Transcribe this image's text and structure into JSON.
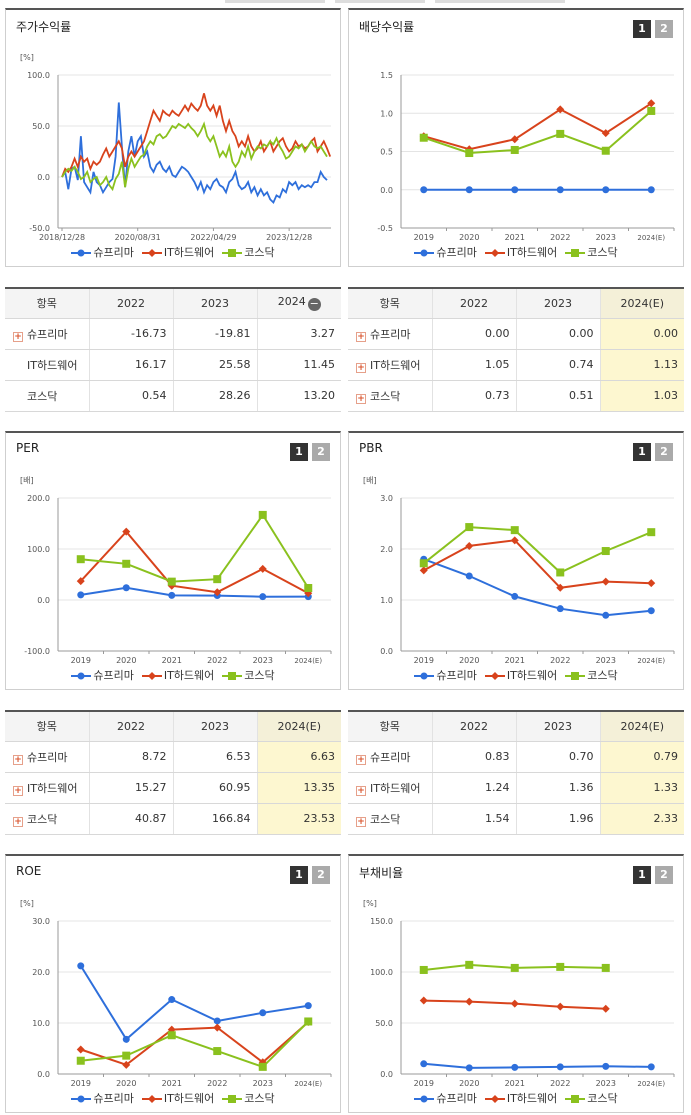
{
  "legend": [
    "슈프리마",
    "IT하드웨어",
    "코스닥"
  ],
  "colors": {
    "supr": "#2e6fdb",
    "it": "#d8431c",
    "kosdaq": "#8ac11e"
  },
  "tabs": [
    "1",
    "2"
  ],
  "stock": {
    "title": "주가수익률",
    "unit": "[%]",
    "chart_data": {
      "type": "line",
      "title": "주가수익률",
      "ylabel": "[%]",
      "ylim": [
        -50,
        100
      ],
      "yticks": [
        "100.0",
        "50.0",
        "0.0",
        "-50.0"
      ],
      "xticks": [
        "2018/12/28",
        "2020/08/31",
        "2022/04/29",
        "2023/12/28"
      ],
      "series": [
        {
          "name": "슈프리마",
          "values": [
            0,
            5,
            -12,
            8,
            10,
            -3,
            40,
            -5,
            -10,
            -15,
            5,
            -5,
            -8,
            -15,
            -10,
            -5,
            -2,
            20,
            73,
            30,
            -10,
            25,
            40,
            20,
            35,
            40,
            20,
            25,
            10,
            5,
            12,
            15,
            8,
            5,
            10,
            2,
            0,
            5,
            10,
            8,
            5,
            0,
            -5,
            -12,
            -5,
            -15,
            -8,
            -12,
            -5,
            -2,
            -8,
            -10,
            -15,
            -5,
            -2,
            5,
            -8,
            -12,
            -10,
            -5,
            -15,
            -10,
            -18,
            -12,
            -18,
            -15,
            -22,
            -25,
            -18,
            -20,
            -12,
            -15,
            -5,
            -8,
            -5,
            -12,
            -8,
            -10,
            -8,
            -10,
            -5,
            -5,
            5,
            0,
            -3
          ]
        },
        {
          "name": "IT하드웨어",
          "values": [
            0,
            8,
            5,
            10,
            18,
            10,
            20,
            15,
            18,
            8,
            15,
            12,
            15,
            22,
            28,
            20,
            25,
            30,
            35,
            28,
            10,
            20,
            25,
            20,
            25,
            30,
            35,
            45,
            55,
            65,
            60,
            55,
            65,
            62,
            60,
            65,
            62,
            60,
            65,
            70,
            65,
            72,
            68,
            65,
            70,
            82,
            70,
            65,
            70,
            60,
            70,
            55,
            45,
            55,
            45,
            40,
            30,
            35,
            30,
            40,
            30,
            25,
            28,
            35,
            25,
            30,
            35,
            25,
            30,
            35,
            38,
            30,
            25,
            28,
            35,
            30,
            32,
            28,
            30,
            35,
            38,
            25,
            30,
            35,
            28,
            20
          ]
        },
        {
          "name": "코스닥",
          "values": [
            0,
            5,
            8,
            6,
            10,
            5,
            -2,
            0,
            5,
            -5,
            -2,
            0,
            -8,
            -5,
            0,
            -8,
            -12,
            -2,
            3,
            15,
            -10,
            8,
            18,
            10,
            15,
            20,
            22,
            30,
            35,
            32,
            40,
            42,
            38,
            40,
            45,
            50,
            48,
            52,
            50,
            48,
            52,
            48,
            45,
            40,
            45,
            52,
            40,
            35,
            40,
            30,
            20,
            25,
            20,
            30,
            15,
            10,
            15,
            25,
            20,
            30,
            18,
            25,
            30,
            28,
            32,
            30,
            35,
            32,
            38,
            30,
            25,
            18,
            20,
            25,
            30,
            28,
            32,
            25,
            30,
            35,
            30,
            28,
            30,
            25,
            20
          ]
        }
      ]
    }
  },
  "dividend": {
    "title": "배당수익률",
    "chart_data": {
      "type": "line",
      "title": "배당수익률",
      "ylim": [
        -0.5,
        1.5
      ],
      "yticks": [
        "1.5",
        "1.0",
        "0.5",
        "0.0",
        "-0.5"
      ],
      "categories": [
        "2019",
        "2020",
        "2021",
        "2022",
        "2023",
        "2024(E)"
      ],
      "series": [
        {
          "name": "슈프리마",
          "values": [
            0.0,
            0.0,
            0.0,
            0.0,
            0.0,
            0.0
          ]
        },
        {
          "name": "IT하드웨어",
          "values": [
            0.7,
            0.53,
            0.66,
            1.05,
            0.74,
            1.13
          ]
        },
        {
          "name": "코스닥",
          "values": [
            0.68,
            0.48,
            0.52,
            0.73,
            0.51,
            1.03
          ]
        }
      ]
    }
  },
  "per": {
    "title": "PER",
    "unit": "[배]",
    "chart_data": {
      "type": "line",
      "title": "PER",
      "ylabel": "[배]",
      "ylim": [
        -100,
        200
      ],
      "yticks": [
        "200.0",
        "100.0",
        "0.0",
        "-100.0"
      ],
      "categories": [
        "2019",
        "2020",
        "2021",
        "2022",
        "2023",
        "2024(E)"
      ],
      "series": [
        {
          "name": "슈프리마",
          "values": [
            10,
            24,
            9,
            8.72,
            6.53,
            6.63
          ]
        },
        {
          "name": "IT하드웨어",
          "values": [
            37,
            134,
            28,
            15.27,
            60.95,
            13.35
          ]
        },
        {
          "name": "코스닥",
          "values": [
            80,
            71,
            36,
            40.87,
            166.84,
            23.53
          ]
        }
      ]
    }
  },
  "pbr": {
    "title": "PBR",
    "unit": "[배]",
    "chart_data": {
      "type": "line",
      "title": "PBR",
      "ylabel": "[배]",
      "ylim": [
        0,
        3
      ],
      "yticks": [
        "3.0",
        "2.0",
        "1.0",
        "0.0"
      ],
      "categories": [
        "2019",
        "2020",
        "2021",
        "2022",
        "2023",
        "2024(E)"
      ],
      "series": [
        {
          "name": "슈프리마",
          "values": [
            1.8,
            1.47,
            1.07,
            0.83,
            0.7,
            0.79
          ]
        },
        {
          "name": "IT하드웨어",
          "values": [
            1.58,
            2.06,
            2.17,
            1.24,
            1.36,
            1.33
          ]
        },
        {
          "name": "코스닥",
          "values": [
            1.72,
            2.43,
            2.37,
            1.54,
            1.96,
            2.33
          ]
        }
      ]
    }
  },
  "roe": {
    "title": "ROE",
    "unit": "[%]",
    "chart_data": {
      "type": "line",
      "title": "ROE",
      "ylabel": "[%]",
      "ylim": [
        0,
        30
      ],
      "yticks": [
        "30.0",
        "20.0",
        "10.0",
        "0.0"
      ],
      "categories": [
        "2019",
        "2020",
        "2021",
        "2022",
        "2023",
        "2024(E)"
      ],
      "series": [
        {
          "name": "슈프리마",
          "values": [
            21.2,
            6.8,
            14.6,
            10.4,
            12.0,
            13.4
          ]
        },
        {
          "name": "IT하드웨어",
          "values": [
            4.8,
            1.8,
            8.7,
            9.1,
            2.3,
            10.2
          ]
        },
        {
          "name": "코스닥",
          "values": [
            2.6,
            3.6,
            7.6,
            4.5,
            1.4,
            10.3
          ]
        }
      ]
    }
  },
  "debt": {
    "title": "부채비율",
    "unit": "[%]",
    "chart_data": {
      "type": "line",
      "title": "부채비율",
      "ylabel": "[%]",
      "ylim": [
        0,
        150
      ],
      "yticks": [
        "150.0",
        "100.0",
        "50.0",
        "0.0"
      ],
      "categories": [
        "2019",
        "2020",
        "2021",
        "2022",
        "2023",
        "2024(E)"
      ],
      "series": [
        {
          "name": "슈프리마",
          "values": [
            10,
            6,
            6.5,
            7,
            7.5,
            7
          ]
        },
        {
          "name": "IT하드웨어",
          "values": [
            72,
            71,
            69,
            66,
            64,
            null
          ]
        },
        {
          "name": "코스닥",
          "values": [
            102,
            107,
            104,
            105,
            104,
            null
          ]
        }
      ]
    }
  },
  "tables": {
    "stock": {
      "headers": [
        "항목",
        "2022",
        "2023",
        "2024"
      ],
      "rows": [
        {
          "name": "슈프리마",
          "plus": true,
          "vals": [
            "-16.73",
            "-19.81",
            "3.27"
          ]
        },
        {
          "name": "IT하드웨어",
          "plus": false,
          "vals": [
            "16.17",
            "25.58",
            "11.45"
          ]
        },
        {
          "name": "코스닥",
          "plus": false,
          "vals": [
            "0.54",
            "28.26",
            "13.20"
          ]
        }
      ]
    },
    "dividend": {
      "headers": [
        "항목",
        "2022",
        "2023",
        "2024(E)"
      ],
      "rows": [
        {
          "name": "슈프리마",
          "plus": true,
          "vals": [
            "0.00",
            "0.00",
            "0.00"
          ]
        },
        {
          "name": "IT하드웨어",
          "plus": true,
          "vals": [
            "1.05",
            "0.74",
            "1.13"
          ]
        },
        {
          "name": "코스닥",
          "plus": true,
          "vals": [
            "0.73",
            "0.51",
            "1.03"
          ]
        }
      ]
    },
    "per": {
      "headers": [
        "항목",
        "2022",
        "2023",
        "2024(E)"
      ],
      "rows": [
        {
          "name": "슈프리마",
          "plus": true,
          "vals": [
            "8.72",
            "6.53",
            "6.63"
          ]
        },
        {
          "name": "IT하드웨어",
          "plus": true,
          "vals": [
            "15.27",
            "60.95",
            "13.35"
          ]
        },
        {
          "name": "코스닥",
          "plus": true,
          "vals": [
            "40.87",
            "166.84",
            "23.53"
          ]
        }
      ]
    },
    "pbr": {
      "headers": [
        "항목",
        "2022",
        "2023",
        "2024(E)"
      ],
      "rows": [
        {
          "name": "슈프리마",
          "plus": true,
          "vals": [
            "0.83",
            "0.70",
            "0.79"
          ]
        },
        {
          "name": "IT하드웨어",
          "plus": true,
          "vals": [
            "1.24",
            "1.36",
            "1.33"
          ]
        },
        {
          "name": "코스닥",
          "plus": true,
          "vals": [
            "1.54",
            "1.96",
            "2.33"
          ]
        }
      ]
    }
  }
}
